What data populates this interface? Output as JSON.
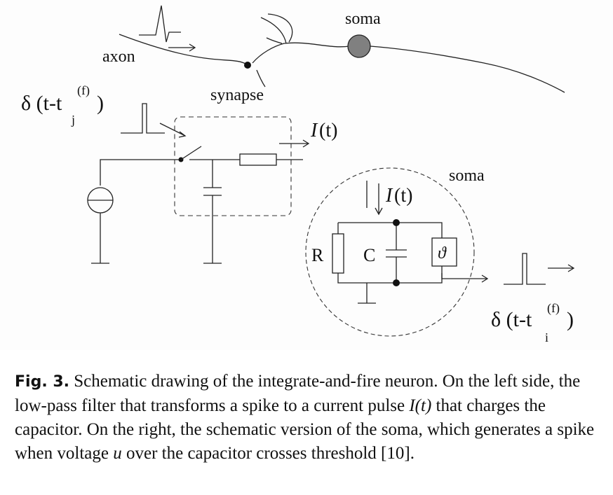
{
  "diagram": {
    "labels": {
      "axon": "axon",
      "synapse": "synapse",
      "soma_top": "soma",
      "soma_circle": "soma",
      "current_filter": "I",
      "current_filter_arg": "(t)",
      "current_soma": "I",
      "current_soma_arg": "(t)",
      "resistor": "R",
      "capacitor": "C",
      "threshold": "ϑ",
      "input_spike_delta": "δ (t-t",
      "input_spike_sup": "(f)",
      "input_spike_sub": "j",
      "output_spike_delta": "δ (t-t",
      "output_spike_sup": "(f)",
      "output_spike_sub": "i",
      "close_paren": ")"
    }
  },
  "caption": {
    "fig_label": "Fig. 3.",
    "part1": " Schematic drawing of the integrate-and-fire neuron. On the left side, the low-pass filter that transforms a spike to a current pulse ",
    "current_symbol": "I(t)",
    "part2": " that charges the capacitor. On the right, the schematic version of the soma, which generates a spike when voltage ",
    "voltage_symbol": "u",
    "part3": " over the capacitor crosses threshold  [10]."
  }
}
